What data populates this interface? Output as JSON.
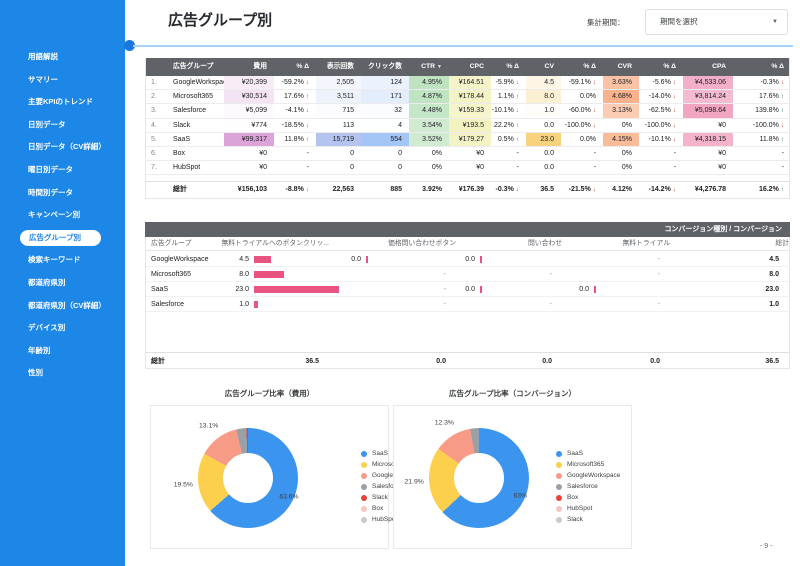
{
  "sidebar": {
    "items": [
      "用語解説",
      "サマリー",
      "主要KPIのトレンド",
      "日別データ",
      "日別データ（CV詳細）",
      "曜日別データ",
      "時間別データ",
      "キャンペーン別",
      "広告グループ別",
      "検索キーワード",
      "都道府県別",
      "都道府県別（CV詳細）",
      "デバイス別",
      "年齢別",
      "性別"
    ],
    "active_index": 8
  },
  "header": {
    "title": "広告グループ別",
    "period_label": "集計期間：",
    "period_placeholder": "期間を選択"
  },
  "table1": {
    "headers": [
      "広告グループ",
      "費用",
      "% Δ",
      "表示回数",
      "クリック数",
      "CTR",
      "CPC",
      "% Δ",
      "CV",
      "% Δ",
      "CVR",
      "% Δ",
      "CPA",
      "% Δ"
    ],
    "sorted_header": "CTR",
    "rows": [
      {
        "num": "1.",
        "name": "GoogleWorkspace",
        "cells": [
          "¥20,399",
          "-59.2% ↓",
          "2,505",
          "124",
          "4.95%",
          "¥164.51",
          "-5.9% ↓",
          "4.5",
          "-59.1% ↓",
          "3.63%",
          "-5.6% ↓",
          "¥4,533.06",
          "-0.3% ↓"
        ]
      },
      {
        "num": "2.",
        "name": "Microsoft365",
        "cells": [
          "¥30,514",
          "17.6% ↑",
          "3,511",
          "171",
          "4.87%",
          "¥178.44",
          "1.1% ↑",
          "8.0",
          "0.0%",
          "4.68%",
          "-14.0% ↓",
          "¥3,814.24",
          "17.6% ↑"
        ]
      },
      {
        "num": "3.",
        "name": "Salesforce",
        "cells": [
          "¥5,099",
          "-4.1% ↓",
          "715",
          "32",
          "4.48%",
          "¥159.33",
          "-10.1% ↓",
          "1.0",
          "-60.0% ↓",
          "3.13%",
          "-62.5% ↓",
          "¥5,098.64",
          "139.8% ↑"
        ]
      },
      {
        "num": "4.",
        "name": "Slack",
        "cells": [
          "¥774",
          "-18.5% ↓",
          "113",
          "4",
          "3.54%",
          "¥193.5",
          "22.2% ↑",
          "0.0",
          "-100.0% ↓",
          "0%",
          "-100.0% ↓",
          "¥0",
          "-100.0% ↓"
        ]
      },
      {
        "num": "5.",
        "name": "SaaS",
        "cells": [
          "¥99,317",
          "11.8% ↑",
          "15,719",
          "554",
          "3.52%",
          "¥179.27",
          "0.5% ↑",
          "23.0",
          "0.0%",
          "4.15%",
          "-10.1% ↓",
          "¥4,318.15",
          "11.8% ↑"
        ]
      },
      {
        "num": "6.",
        "name": "Box",
        "cells": [
          "¥0",
          "-",
          "0",
          "0",
          "0%",
          "¥0",
          "-",
          "0.0",
          "-",
          "0%",
          "-",
          "¥0",
          "-"
        ]
      },
      {
        "num": "7.",
        "name": "HubSpot",
        "cells": [
          "¥0",
          "-",
          "0",
          "0",
          "0%",
          "¥0",
          "-",
          "0.0",
          "-",
          "0%",
          "-",
          "¥0",
          "-"
        ]
      }
    ],
    "summary_label": "総計",
    "summary": [
      "¥156,103",
      "-8.8% ↓",
      "22,563",
      "885",
      "3.92%",
      "¥176.39",
      "-0.3% ↓",
      "36.5",
      "-21.5% ↓",
      "4.12%",
      "-14.2% ↓",
      "¥4,276.78",
      "16.2% ↑"
    ],
    "heat_colors": {
      "0": "#dca3d8",
      "2": "#b5c4ee",
      "3": "#a4c6f6",
      "4": "#bfe3c1",
      "5": "#f3f2c0",
      "7": "#f7d37f",
      "9": "#f9b28c",
      "11": "#f2a5c2"
    }
  },
  "table2": {
    "corner_title": "コンバージョン種別 / コンバージョン",
    "headers": [
      "広告グループ",
      "無料トライアルへのボタンクリッ...",
      "価格問い合わせボタン",
      "問い合わせ",
      "無料トライアル",
      "総計"
    ],
    "rows": [
      {
        "name": "GoogleWorkspace",
        "values": [
          {
            "text": "4.5",
            "bar": 4.5
          },
          {
            "text": "0.0",
            "bar": 0
          },
          {
            "text": "0.0",
            "bar": 0
          },
          null
        ],
        "total": "4.5"
      },
      {
        "name": "Microsoft365",
        "values": [
          {
            "text": "8.0",
            "bar": 8
          },
          null,
          null,
          null
        ],
        "total": "8.0"
      },
      {
        "name": "SaaS",
        "values": [
          {
            "text": "23.0",
            "bar": 23
          },
          null,
          {
            "text": "0.0",
            "bar": 0
          },
          {
            "text": "0.0",
            "bar": 0
          }
        ],
        "total": "23.0"
      },
      {
        "name": "Salesforce",
        "values": [
          {
            "text": "1.0",
            "bar": 1
          },
          null,
          null,
          null
        ],
        "total": "1.0"
      }
    ],
    "summary_label": "総計",
    "summary": [
      "36.5",
      "0.0",
      "0.0",
      "0.0",
      "36.5"
    ],
    "bar_color": "#e8537f",
    "bar_max": 23
  },
  "chart_data": [
    {
      "type": "pie",
      "title": "広告グループ比率（費用）",
      "slices": [
        {
          "name": "SaaS",
          "pct": 63.6,
          "label": "63.6%",
          "color": "#3b95ef"
        },
        {
          "name": "Microsoft365",
          "pct": 19.5,
          "label": "19.5%",
          "color": "#fccf4d"
        },
        {
          "name": "GoogleWorkspace",
          "pct": 13.1,
          "label": "13.1%",
          "color": "#f89b86"
        },
        {
          "name": "Salesforce",
          "pct": 3.3,
          "color": "#9aa0a6"
        },
        {
          "name": "Slack",
          "pct": 0.5,
          "color": "#ea4335"
        }
      ],
      "legend": [
        {
          "name": "SaaS",
          "color": "#3b95ef"
        },
        {
          "name": "Microsoft365",
          "color": "#fccf4d"
        },
        {
          "name": "GoogleWorkspace",
          "color": "#f89b86"
        },
        {
          "name": "Salesforce",
          "color": "#9aa0a6"
        },
        {
          "name": "Slack",
          "color": "#ea4335"
        },
        {
          "name": "Box",
          "color": "#f7c6c0"
        },
        {
          "name": "HubSpot",
          "color": "#c7cace"
        }
      ]
    },
    {
      "type": "pie",
      "title": "広告グループ比率（コンバージョン）",
      "slices": [
        {
          "name": "SaaS",
          "pct": 63.0,
          "label": "63%",
          "color": "#3b95ef"
        },
        {
          "name": "Microsoft365",
          "pct": 21.9,
          "label": "21.9%",
          "color": "#fccf4d"
        },
        {
          "name": "GoogleWorkspace",
          "pct": 12.3,
          "label": "12.3%",
          "color": "#f89b86"
        },
        {
          "name": "Salesforce",
          "pct": 2.8,
          "color": "#9aa0a6"
        }
      ],
      "legend": [
        {
          "name": "SaaS",
          "color": "#3b95ef"
        },
        {
          "name": "Microsoft365",
          "color": "#fccf4d"
        },
        {
          "name": "GoogleWorkspace",
          "color": "#f89b86"
        },
        {
          "name": "Salesforce",
          "color": "#9aa0a6"
        },
        {
          "name": "Box",
          "color": "#ea4335"
        },
        {
          "name": "HubSpot",
          "color": "#f7c6c0"
        },
        {
          "name": "Slack",
          "color": "#c7cace"
        }
      ]
    }
  ],
  "footer": {
    "page_number": "- 9 -"
  },
  "colors": {
    "sidebar": "#1d87e8",
    "table_header": "#5f6368",
    "divider": "#a6d1f6",
    "up": "#188038",
    "down": "#d93025"
  }
}
